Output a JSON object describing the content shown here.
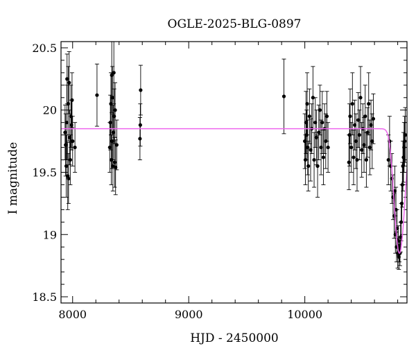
{
  "chart_data": {
    "type": "scatter",
    "title": "OGLE-2025-BLG-0897",
    "xlabel": "HJD - 2450000",
    "ylabel": "I magnitude",
    "xlim": [
      7900,
      10880
    ],
    "ylim": [
      20.55,
      18.45
    ],
    "y_inverted": true,
    "xticks": [
      8000,
      9000,
      10000
    ],
    "yticks": [
      18.5,
      19,
      19.5,
      20,
      20.5
    ],
    "ytick_labels": [
      "18.5",
      "19",
      "19.5",
      "20",
      "20.5"
    ],
    "grid": false,
    "legend": "none",
    "model_color": "#ee66ee",
    "model": {
      "baseline_mag": 19.85,
      "peak_mag": 18.85,
      "t0": 10815,
      "tE": 38
    },
    "points": [
      {
        "x": 7935,
        "y": 19.82,
        "err": 0.22
      },
      {
        "x": 7940,
        "y": 19.72,
        "err": 0.25
      },
      {
        "x": 7945,
        "y": 19.55,
        "err": 0.25
      },
      {
        "x": 7950,
        "y": 19.9,
        "err": 0.3
      },
      {
        "x": 7952,
        "y": 20.25,
        "err": 0.2
      },
      {
        "x": 7958,
        "y": 19.47,
        "err": 0.27
      },
      {
        "x": 7962,
        "y": 20.05,
        "err": 0.3
      },
      {
        "x": 7965,
        "y": 19.45,
        "err": 0.2
      },
      {
        "x": 7970,
        "y": 20.22,
        "err": 0.25
      },
      {
        "x": 7975,
        "y": 19.78,
        "err": 0.22
      },
      {
        "x": 7980,
        "y": 19.6,
        "err": 0.2
      },
      {
        "x": 7985,
        "y": 19.95,
        "err": 0.25
      },
      {
        "x": 7990,
        "y": 19.88,
        "err": 0.2
      },
      {
        "x": 7995,
        "y": 20.08,
        "err": 0.22
      },
      {
        "x": 8000,
        "y": 19.75,
        "err": 0.2
      },
      {
        "x": 8020,
        "y": 19.7,
        "err": 0.2
      },
      {
        "x": 8210,
        "y": 20.12,
        "err": 0.25
      },
      {
        "x": 8320,
        "y": 19.7,
        "err": 0.2
      },
      {
        "x": 8325,
        "y": 19.9,
        "err": 0.22
      },
      {
        "x": 8330,
        "y": 20.05,
        "err": 0.25
      },
      {
        "x": 8333,
        "y": 19.6,
        "err": 0.2
      },
      {
        "x": 8337,
        "y": 20.28,
        "err": 0.3
      },
      {
        "x": 8340,
        "y": 19.75,
        "err": 0.22
      },
      {
        "x": 8343,
        "y": 20.1,
        "err": 0.25
      },
      {
        "x": 8347,
        "y": 19.55,
        "err": 0.2
      },
      {
        "x": 8350,
        "y": 19.82,
        "err": 0.22
      },
      {
        "x": 8355,
        "y": 20.3,
        "err": 0.25
      },
      {
        "x": 8358,
        "y": 19.95,
        "err": 0.22
      },
      {
        "x": 8362,
        "y": 19.58,
        "err": 0.2
      },
      {
        "x": 8366,
        "y": 20.0,
        "err": 0.22
      },
      {
        "x": 8370,
        "y": 19.54,
        "err": 0.22
      },
      {
        "x": 8380,
        "y": 19.72,
        "err": 0.2
      },
      {
        "x": 8580,
        "y": 19.77,
        "err": 0.17
      },
      {
        "x": 8583,
        "y": 19.88,
        "err": 0.17
      },
      {
        "x": 8586,
        "y": 20.16,
        "err": 0.2
      },
      {
        "x": 9820,
        "y": 20.11,
        "err": 0.3
      },
      {
        "x": 10000,
        "y": 19.75,
        "err": 0.22
      },
      {
        "x": 10005,
        "y": 19.6,
        "err": 0.2
      },
      {
        "x": 10010,
        "y": 19.9,
        "err": 0.25
      },
      {
        "x": 10015,
        "y": 19.8,
        "err": 0.2
      },
      {
        "x": 10020,
        "y": 20.05,
        "err": 0.25
      },
      {
        "x": 10025,
        "y": 19.7,
        "err": 0.22
      },
      {
        "x": 10030,
        "y": 19.55,
        "err": 0.2
      },
      {
        "x": 10040,
        "y": 19.95,
        "err": 0.22
      },
      {
        "x": 10050,
        "y": 19.68,
        "err": 0.25
      },
      {
        "x": 10060,
        "y": 19.85,
        "err": 0.2
      },
      {
        "x": 10070,
        "y": 20.1,
        "err": 0.25
      },
      {
        "x": 10080,
        "y": 19.6,
        "err": 0.22
      },
      {
        "x": 10090,
        "y": 19.9,
        "err": 0.2
      },
      {
        "x": 10100,
        "y": 19.78,
        "err": 0.22
      },
      {
        "x": 10110,
        "y": 19.55,
        "err": 0.25
      },
      {
        "x": 10120,
        "y": 19.82,
        "err": 0.22
      },
      {
        "x": 10130,
        "y": 20.0,
        "err": 0.2
      },
      {
        "x": 10140,
        "y": 19.7,
        "err": 0.22
      },
      {
        "x": 10150,
        "y": 19.9,
        "err": 0.25
      },
      {
        "x": 10160,
        "y": 19.62,
        "err": 0.22
      },
      {
        "x": 10170,
        "y": 19.85,
        "err": 0.2
      },
      {
        "x": 10180,
        "y": 19.75,
        "err": 0.22
      },
      {
        "x": 10190,
        "y": 19.95,
        "err": 0.2
      },
      {
        "x": 10200,
        "y": 19.7,
        "err": 0.2
      },
      {
        "x": 10380,
        "y": 19.58,
        "err": 0.22
      },
      {
        "x": 10385,
        "y": 19.8,
        "err": 0.25
      },
      {
        "x": 10390,
        "y": 19.95,
        "err": 0.22
      },
      {
        "x": 10400,
        "y": 19.7,
        "err": 0.2
      },
      {
        "x": 10410,
        "y": 20.05,
        "err": 0.25
      },
      {
        "x": 10420,
        "y": 19.62,
        "err": 0.22
      },
      {
        "x": 10430,
        "y": 19.88,
        "err": 0.2
      },
      {
        "x": 10440,
        "y": 19.75,
        "err": 0.22
      },
      {
        "x": 10450,
        "y": 19.6,
        "err": 0.25
      },
      {
        "x": 10460,
        "y": 19.92,
        "err": 0.22
      },
      {
        "x": 10470,
        "y": 19.8,
        "err": 0.2
      },
      {
        "x": 10480,
        "y": 20.1,
        "err": 0.25
      },
      {
        "x": 10490,
        "y": 19.68,
        "err": 0.22
      },
      {
        "x": 10500,
        "y": 19.85,
        "err": 0.2
      },
      {
        "x": 10510,
        "y": 19.72,
        "err": 0.22
      },
      {
        "x": 10520,
        "y": 19.95,
        "err": 0.25
      },
      {
        "x": 10530,
        "y": 19.6,
        "err": 0.22
      },
      {
        "x": 10540,
        "y": 19.82,
        "err": 0.2
      },
      {
        "x": 10550,
        "y": 20.05,
        "err": 0.25
      },
      {
        "x": 10560,
        "y": 19.7,
        "err": 0.22
      },
      {
        "x": 10570,
        "y": 19.88,
        "err": 0.2
      },
      {
        "x": 10580,
        "y": 19.75,
        "err": 0.22
      },
      {
        "x": 10590,
        "y": 19.93,
        "err": 0.2
      },
      {
        "x": 10720,
        "y": 19.6,
        "err": 0.2
      },
      {
        "x": 10730,
        "y": 19.75,
        "err": 0.2
      },
      {
        "x": 10740,
        "y": 19.55,
        "err": 0.2
      },
      {
        "x": 10750,
        "y": 19.45,
        "err": 0.2
      },
      {
        "x": 10760,
        "y": 19.3,
        "err": 0.18
      },
      {
        "x": 10770,
        "y": 19.15,
        "err": 0.18
      },
      {
        "x": 10775,
        "y": 19.35,
        "err": 0.2
      },
      {
        "x": 10780,
        "y": 19.0,
        "err": 0.15
      },
      {
        "x": 10785,
        "y": 19.2,
        "err": 0.18
      },
      {
        "x": 10790,
        "y": 18.9,
        "err": 0.12
      },
      {
        "x": 10795,
        "y": 19.05,
        "err": 0.15
      },
      {
        "x": 10800,
        "y": 18.85,
        "err": 0.12
      },
      {
        "x": 10805,
        "y": 18.95,
        "err": 0.12
      },
      {
        "x": 10810,
        "y": 18.82,
        "err": 0.1
      },
      {
        "x": 10815,
        "y": 18.88,
        "err": 0.1
      },
      {
        "x": 10820,
        "y": 18.85,
        "err": 0.1
      },
      {
        "x": 10825,
        "y": 18.98,
        "err": 0.12
      },
      {
        "x": 10830,
        "y": 19.1,
        "err": 0.15
      },
      {
        "x": 10835,
        "y": 19.25,
        "err": 0.15
      },
      {
        "x": 10840,
        "y": 19.4,
        "err": 0.18
      },
      {
        "x": 10845,
        "y": 19.55,
        "err": 0.2
      },
      {
        "x": 10850,
        "y": 19.62,
        "err": 0.2
      },
      {
        "x": 10855,
        "y": 19.7,
        "err": 0.2
      },
      {
        "x": 10860,
        "y": 19.75,
        "err": 0.2
      },
      {
        "x": 10865,
        "y": 19.8,
        "err": 0.22
      }
    ]
  }
}
